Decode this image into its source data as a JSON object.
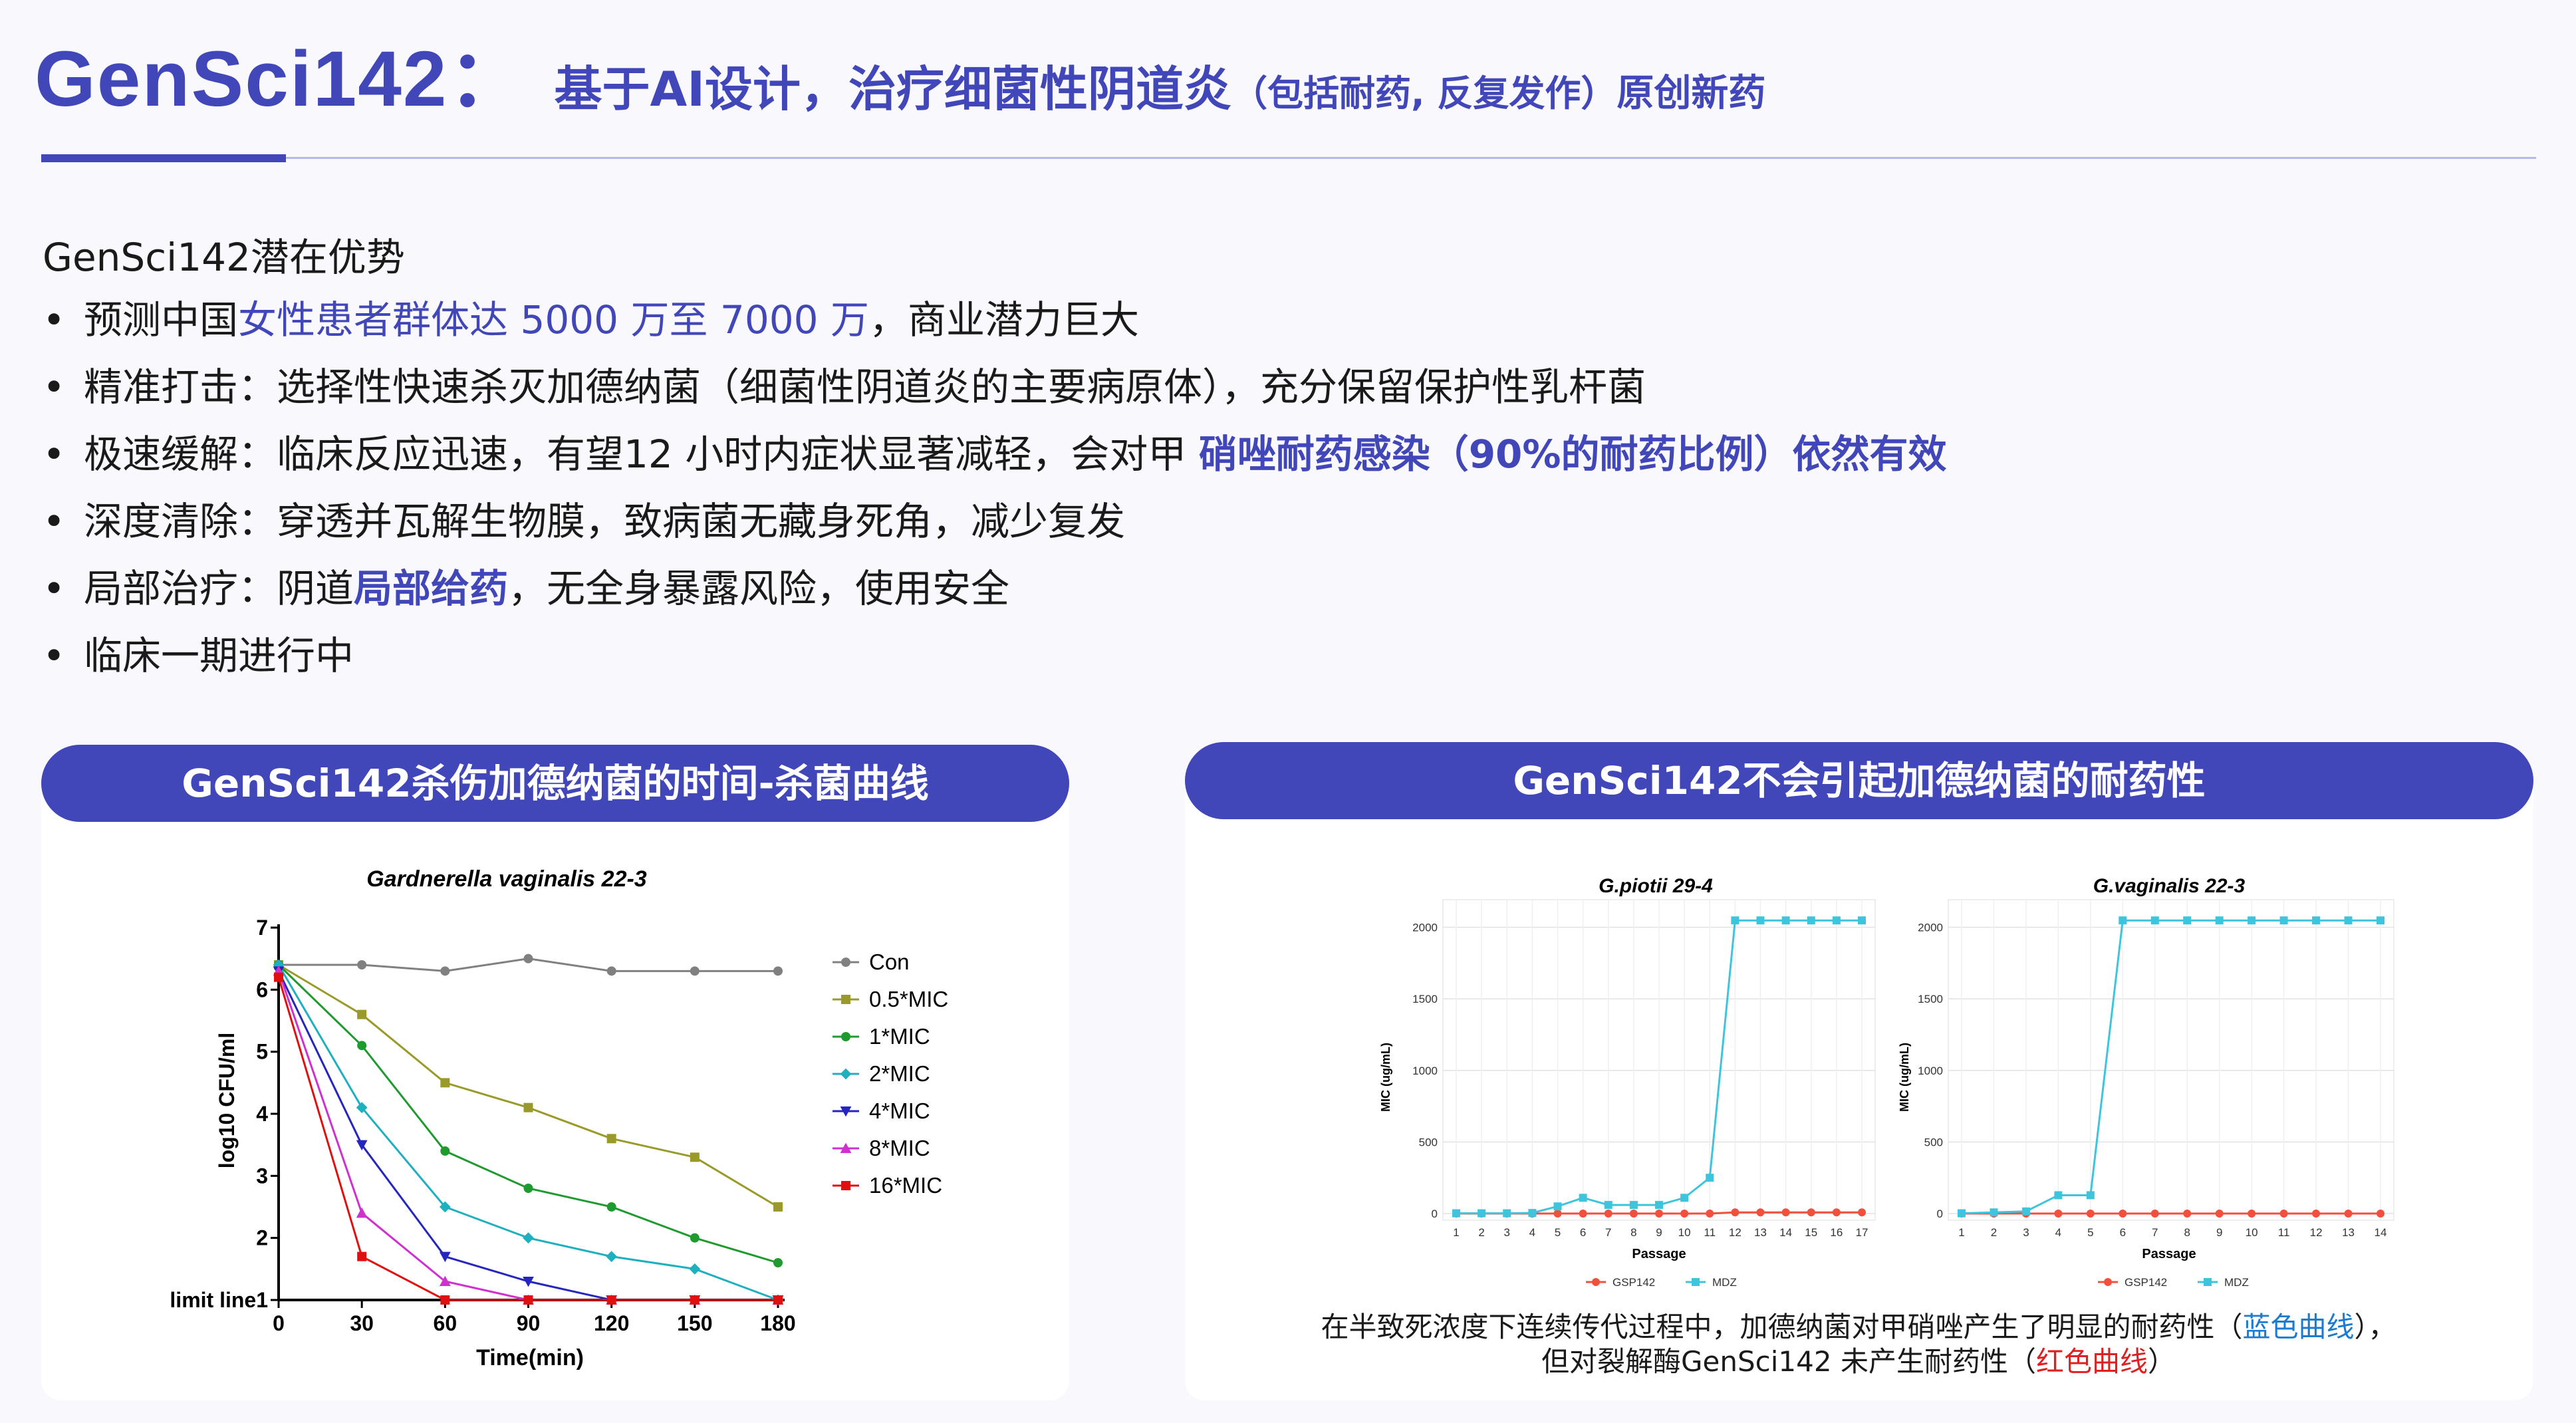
{
  "header": {
    "code": "GenSci142：",
    "main": "基于AI设计，治疗细菌性阴道炎",
    "paren": "（包括耐药, 反复发作）",
    "tail": "原创新药"
  },
  "advantages": {
    "heading": "GenSci142潜在优势",
    "items": [
      {
        "pre": "预测中国",
        "hl": "女性患者群体达 5000 万至 7000 万",
        "post": "，商业潜力巨大",
        "style": "blue"
      },
      {
        "pre": "精准打击：选择性快速杀灭加德纳菌（细菌性阴道炎的主要病原体），充分保留保护性乳杆菌",
        "hl": "",
        "post": "",
        "style": "none"
      },
      {
        "pre": "极速缓解：临床反应迅速，有望12 小时内症状显著减轻，会对甲 ",
        "hl": "硝唑耐药感染（90%的耐药比例）依然有效",
        "post": "",
        "style": "bold"
      },
      {
        "pre": "深度清除：穿透并瓦解生物膜，致病菌无藏身死角，减少复发",
        "hl": "",
        "post": "",
        "style": "none"
      },
      {
        "pre": "局部治疗：阴道",
        "hl": "局部给药",
        "post": "，无全身暴露风险，使用安全",
        "style": "bold"
      },
      {
        "pre": "临床一期进行中",
        "hl": "",
        "post": "",
        "style": "none"
      }
    ]
  },
  "panels": {
    "left_title": "GenSci142杀伤加德纳菌的时间-杀菌曲线",
    "right_title": "GenSci142不会引起加德纳菌的耐药性",
    "caption_line1_pre": "在半致死浓度下连续传代过程中，加德纳菌对甲硝唑产生了明显的耐药性（",
    "caption_line1_hl": "蓝色曲线",
    "caption_line1_post": "），",
    "caption_line2_pre": "但对裂解酶GenSci142 未产生耐药性（",
    "caption_line2_hl": "红色曲线",
    "caption_line2_post": "）"
  },
  "chart_data": [
    {
      "type": "line",
      "title": "Gardnerella vaginalis 22-3",
      "xlabel": "Time(min)",
      "ylabel": "log10 CFU/ml",
      "x": [
        0,
        30,
        60,
        90,
        120,
        150,
        180
      ],
      "xlim": [
        0,
        180
      ],
      "ylim": [
        1,
        7
      ],
      "y_ticks": [
        1,
        2,
        3,
        4,
        5,
        6,
        7
      ],
      "y_tick_labels": [
        "limit line1",
        "2",
        "3",
        "4",
        "5",
        "6",
        "7"
      ],
      "legend_position": "right",
      "series": [
        {
          "name": "Con",
          "color": "#808080",
          "marker": "circle",
          "values": [
            6.4,
            6.4,
            6.3,
            6.5,
            6.3,
            6.3,
            6.3
          ]
        },
        {
          "name": "0.5*MIC",
          "color": "#9a9a2a",
          "marker": "square",
          "values": [
            6.4,
            5.6,
            4.5,
            4.1,
            3.6,
            3.3,
            2.5
          ]
        },
        {
          "name": "1*MIC",
          "color": "#1f9a2e",
          "marker": "circle",
          "values": [
            6.4,
            5.1,
            3.4,
            2.8,
            2.5,
            2.0,
            1.6
          ]
        },
        {
          "name": "2*MIC",
          "color": "#1fb0c0",
          "marker": "diamond",
          "values": [
            6.4,
            4.1,
            2.5,
            2.0,
            1.7,
            1.5,
            1.0
          ]
        },
        {
          "name": "4*MIC",
          "color": "#2525c0",
          "marker": "triangle-down",
          "values": [
            6.3,
            3.5,
            1.7,
            1.3,
            1.0,
            1.0,
            1.0
          ]
        },
        {
          "name": "8*MIC",
          "color": "#d030d0",
          "marker": "triangle-up",
          "values": [
            6.3,
            2.4,
            1.3,
            1.0,
            1.0,
            1.0,
            1.0
          ]
        },
        {
          "name": "16*MIC",
          "color": "#e01010",
          "marker": "square",
          "values": [
            6.2,
            1.7,
            1.0,
            1.0,
            1.0,
            1.0,
            1.0
          ]
        }
      ]
    },
    {
      "type": "line",
      "title": "G.piotii 29-4",
      "xlabel": "Passage",
      "ylabel": "MIC (ug/mL)",
      "x": [
        1,
        2,
        3,
        4,
        5,
        6,
        7,
        8,
        9,
        10,
        11,
        12,
        13,
        14,
        15,
        16,
        17
      ],
      "ylim": [
        0,
        2000
      ],
      "y_ticks": [
        0,
        500,
        1000,
        1500,
        2000
      ],
      "grid": true,
      "legend_position": "bottom",
      "series": [
        {
          "name": "GSP142",
          "color": "#f0503c",
          "values": [
            0,
            0,
            0,
            0,
            0,
            0,
            0,
            0,
            0,
            0,
            0,
            8,
            8,
            8,
            8,
            8,
            8
          ]
        },
        {
          "name": "MDZ",
          "color": "#3ec4dc",
          "values": [
            2,
            2,
            2,
            4,
            50,
            110,
            60,
            60,
            60,
            110,
            250,
            2048,
            2048,
            2048,
            2048,
            2048,
            2048
          ]
        }
      ]
    },
    {
      "type": "line",
      "title": "G.vaginalis 22-3",
      "xlabel": "Passage",
      "ylabel": "MIC (ug/mL)",
      "x": [
        1,
        2,
        3,
        4,
        5,
        6,
        7,
        8,
        9,
        10,
        11,
        12,
        13,
        14
      ],
      "ylim": [
        0,
        2000
      ],
      "y_ticks": [
        0,
        500,
        1000,
        1500,
        2000
      ],
      "grid": true,
      "legend_position": "bottom",
      "series": [
        {
          "name": "GSP142",
          "color": "#f0503c",
          "values": [
            0,
            0,
            0,
            0,
            0,
            0,
            0,
            0,
            0,
            0,
            0,
            0,
            0,
            0
          ]
        },
        {
          "name": "MDZ",
          "color": "#3ec4dc",
          "values": [
            2,
            8,
            15,
            128,
            128,
            2048,
            2048,
            2048,
            2048,
            2048,
            2048,
            2048,
            2048,
            2048
          ]
        }
      ]
    }
  ]
}
